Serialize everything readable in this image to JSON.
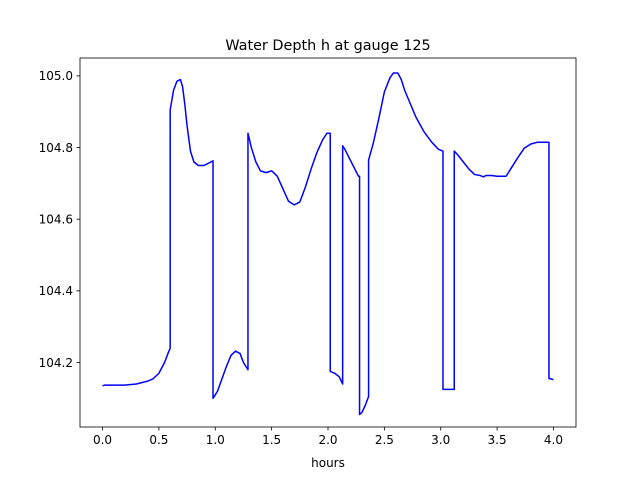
{
  "chart_data": {
    "type": "line",
    "title": "Water Depth h at gauge 125",
    "xlabel": "hours",
    "ylabel": "",
    "xlim": [
      -0.2,
      4.2
    ],
    "ylim": [
      104.02,
      105.05
    ],
    "grid": false,
    "legend": "none",
    "xticks": [
      0.0,
      0.5,
      1.0,
      1.5,
      2.0,
      2.5,
      3.0,
      3.5,
      4.0
    ],
    "xtick_labels": [
      "0.0",
      "0.5",
      "1.0",
      "1.5",
      "2.0",
      "2.5",
      "3.0",
      "3.5",
      "4.0"
    ],
    "yticks": [
      104.2,
      104.4,
      104.6,
      104.8,
      105.0
    ],
    "ytick_labels": [
      "104.2",
      "104.4",
      "104.6",
      "104.8",
      "105.0"
    ],
    "series": [
      {
        "name": "",
        "color": "#0000ff",
        "x": [
          0.0,
          0.02,
          0.1,
          0.2,
          0.3,
          0.4,
          0.45,
          0.5,
          0.55,
          0.58,
          0.6,
          0.6,
          0.63,
          0.66,
          0.69,
          0.71,
          0.73,
          0.75,
          0.78,
          0.81,
          0.85,
          0.9,
          0.95,
          0.98,
          0.98,
          1.02,
          1.06,
          1.1,
          1.14,
          1.18,
          1.22,
          1.25,
          1.28,
          1.29,
          1.29,
          1.32,
          1.36,
          1.4,
          1.45,
          1.5,
          1.55,
          1.6,
          1.65,
          1.7,
          1.75,
          1.8,
          1.85,
          1.9,
          1.95,
          1.99,
          2.01,
          2.02,
          2.02,
          2.06,
          2.1,
          2.13,
          2.13,
          2.15,
          2.19,
          2.23,
          2.27,
          2.28,
          2.28,
          2.3,
          2.33,
          2.36,
          2.36,
          2.4,
          2.45,
          2.5,
          2.55,
          2.58,
          2.62,
          2.65,
          2.68,
          2.72,
          2.78,
          2.85,
          2.92,
          2.98,
          3.02,
          3.02,
          3.06,
          3.12,
          3.12,
          3.15,
          3.2,
          3.25,
          3.3,
          3.35,
          3.38,
          3.4,
          3.45,
          3.5,
          3.55,
          3.58,
          3.62,
          3.68,
          3.74,
          3.8,
          3.86,
          3.9,
          3.93,
          3.96,
          3.96,
          3.97,
          4.0
        ],
        "y": [
          104.135,
          104.137,
          104.137,
          104.137,
          104.14,
          104.148,
          104.155,
          104.17,
          104.2,
          104.225,
          104.24,
          104.905,
          104.96,
          104.985,
          104.99,
          104.97,
          104.92,
          104.86,
          104.79,
          104.76,
          104.75,
          104.75,
          104.758,
          104.763,
          104.1,
          104.12,
          104.155,
          104.19,
          104.22,
          104.232,
          104.225,
          104.2,
          104.185,
          104.18,
          104.84,
          104.8,
          104.76,
          104.735,
          104.73,
          104.735,
          104.72,
          104.685,
          104.65,
          104.64,
          104.648,
          104.69,
          104.74,
          104.785,
          104.82,
          104.84,
          104.84,
          104.84,
          104.175,
          104.17,
          104.16,
          104.14,
          104.805,
          104.795,
          104.77,
          104.745,
          104.72,
          104.72,
          104.055,
          104.06,
          104.08,
          104.105,
          104.765,
          104.81,
          104.88,
          104.955,
          104.995,
          105.008,
          105.008,
          104.99,
          104.96,
          104.93,
          104.885,
          104.845,
          104.815,
          104.795,
          104.79,
          104.125,
          104.125,
          104.125,
          104.79,
          104.78,
          104.76,
          104.74,
          104.725,
          104.722,
          104.718,
          104.722,
          104.722,
          104.72,
          104.72,
          104.72,
          104.74,
          104.77,
          104.798,
          104.81,
          104.815,
          104.815,
          104.815,
          104.815,
          104.155,
          104.155,
          104.152
        ]
      }
    ]
  }
}
